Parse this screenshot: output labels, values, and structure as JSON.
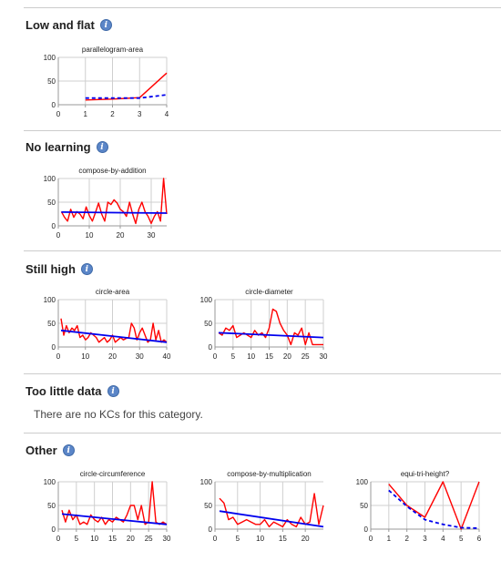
{
  "sections": [
    {
      "title": "Low and flat"
    },
    {
      "title": "No learning"
    },
    {
      "title": "Still high"
    },
    {
      "title": "Too little data",
      "empty_message": "There are no KCs for this category."
    },
    {
      "title": "Other"
    }
  ],
  "colors": {
    "actual": "#ff0000",
    "predicted": "#0000ee",
    "grid": "#cfcfcf",
    "axis": "#999999"
  },
  "chart_data": [
    {
      "type": "line",
      "title": "parallelogram-area",
      "section": "Low and flat",
      "xlim": [
        0,
        4
      ],
      "ylim": [
        0,
        100
      ],
      "xticks": [
        0,
        1,
        2,
        3,
        4
      ],
      "yticks": [
        0,
        50,
        100
      ],
      "series": [
        {
          "role": "actual",
          "x": [
            1,
            2,
            3,
            4
          ],
          "y": [
            10,
            12,
            15,
            67
          ]
        },
        {
          "role": "predicted",
          "style": "dashed",
          "x": [
            1,
            2,
            3,
            4
          ],
          "y": [
            14,
            14,
            14,
            21
          ]
        }
      ]
    },
    {
      "type": "line",
      "title": "compose-by-addition",
      "section": "No learning",
      "xlim": [
        0,
        35
      ],
      "ylim": [
        0,
        100
      ],
      "xticks": [
        0,
        10,
        20,
        30
      ],
      "yticks": [
        0,
        50,
        100
      ],
      "series": [
        {
          "role": "actual",
          "x": [
            1,
            2,
            3,
            4,
            5,
            6,
            7,
            8,
            9,
            10,
            11,
            12,
            13,
            14,
            15,
            16,
            17,
            18,
            19,
            20,
            21,
            22,
            23,
            24,
            25,
            26,
            27,
            28,
            29,
            30,
            31,
            32,
            33,
            34,
            35
          ],
          "y": [
            30,
            18,
            10,
            35,
            18,
            30,
            25,
            15,
            40,
            22,
            10,
            28,
            48,
            25,
            10,
            50,
            45,
            55,
            48,
            35,
            30,
            20,
            50,
            25,
            5,
            35,
            50,
            30,
            20,
            5,
            20,
            30,
            10,
            100,
            25
          ]
        },
        {
          "role": "predicted",
          "x": [
            1,
            35
          ],
          "y": [
            29,
            27
          ]
        }
      ]
    },
    {
      "type": "line",
      "title": "circle-area",
      "section": "Still high",
      "xlim": [
        0,
        40
      ],
      "ylim": [
        0,
        100
      ],
      "xticks": [
        0,
        10,
        20,
        30,
        40
      ],
      "yticks": [
        0,
        50,
        100
      ],
      "series": [
        {
          "role": "actual",
          "x": [
            1,
            2,
            3,
            4,
            5,
            6,
            7,
            8,
            9,
            10,
            11,
            12,
            13,
            14,
            15,
            16,
            17,
            18,
            19,
            20,
            21,
            22,
            23,
            24,
            25,
            26,
            27,
            28,
            29,
            30,
            31,
            32,
            33,
            34,
            35,
            36,
            37,
            38,
            39,
            40
          ],
          "y": [
            60,
            25,
            45,
            30,
            40,
            35,
            45,
            20,
            25,
            15,
            20,
            30,
            25,
            20,
            10,
            15,
            20,
            10,
            15,
            25,
            10,
            15,
            20,
            15,
            18,
            20,
            50,
            40,
            15,
            30,
            40,
            25,
            10,
            15,
            50,
            15,
            35,
            10,
            15,
            10
          ]
        },
        {
          "role": "predicted",
          "x": [
            1,
            40
          ],
          "y": [
            35,
            10
          ]
        }
      ]
    },
    {
      "type": "line",
      "title": "circle-diameter",
      "section": "Still high",
      "xlim": [
        0,
        30
      ],
      "ylim": [
        0,
        100
      ],
      "xticks": [
        0,
        5,
        10,
        15,
        20,
        25,
        30
      ],
      "yticks": [
        0,
        50,
        100
      ],
      "series": [
        {
          "role": "actual",
          "x": [
            1,
            2,
            3,
            4,
            5,
            6,
            7,
            8,
            9,
            10,
            11,
            12,
            13,
            14,
            15,
            16,
            17,
            18,
            19,
            20,
            21,
            22,
            23,
            24,
            25,
            26,
            27,
            28,
            29,
            30
          ],
          "y": [
            30,
            25,
            40,
            35,
            45,
            20,
            25,
            30,
            25,
            20,
            35,
            25,
            30,
            20,
            40,
            80,
            75,
            50,
            35,
            25,
            5,
            30,
            25,
            40,
            5,
            30,
            5,
            5,
            5,
            5
          ]
        },
        {
          "role": "predicted",
          "x": [
            1,
            30
          ],
          "y": [
            30,
            20
          ]
        }
      ]
    },
    {
      "type": "line",
      "title": "circle-circumference",
      "section": "Other",
      "xlim": [
        0,
        30
      ],
      "ylim": [
        0,
        100
      ],
      "xticks": [
        0,
        5,
        10,
        15,
        20,
        25,
        30
      ],
      "yticks": [
        0,
        50,
        100
      ],
      "series": [
        {
          "role": "actual",
          "x": [
            1,
            2,
            3,
            4,
            5,
            6,
            7,
            8,
            9,
            10,
            11,
            12,
            13,
            14,
            15,
            16,
            17,
            18,
            19,
            20,
            21,
            22,
            23,
            24,
            25,
            26,
            27,
            28,
            29,
            30
          ],
          "y": [
            40,
            15,
            40,
            20,
            30,
            10,
            15,
            10,
            30,
            20,
            15,
            25,
            10,
            20,
            15,
            25,
            20,
            15,
            30,
            50,
            50,
            20,
            50,
            10,
            15,
            100,
            15,
            10,
            15,
            10
          ]
        },
        {
          "role": "predicted",
          "x": [
            1,
            30
          ],
          "y": [
            32,
            10
          ]
        }
      ]
    },
    {
      "type": "line",
      "title": "compose-by-multiplication",
      "section": "Other",
      "xlim": [
        0,
        24
      ],
      "ylim": [
        0,
        100
      ],
      "xticks": [
        0,
        5,
        10,
        15,
        20
      ],
      "yticks": [
        0,
        50,
        100
      ],
      "series": [
        {
          "role": "actual",
          "x": [
            1,
            2,
            3,
            4,
            5,
            6,
            7,
            8,
            9,
            10,
            11,
            12,
            13,
            14,
            15,
            16,
            17,
            18,
            19,
            20,
            21,
            22,
            23,
            24
          ],
          "y": [
            65,
            55,
            20,
            25,
            10,
            15,
            20,
            15,
            10,
            10,
            20,
            5,
            15,
            10,
            5,
            20,
            10,
            5,
            25,
            10,
            15,
            75,
            10,
            50
          ]
        },
        {
          "role": "predicted",
          "x": [
            1,
            24
          ],
          "y": [
            38,
            5
          ]
        }
      ]
    },
    {
      "type": "line",
      "title": "equi-tri-height?",
      "section": "Other",
      "xlim": [
        0,
        6
      ],
      "ylim": [
        0,
        100
      ],
      "xticks": [
        0,
        1,
        2,
        3,
        4,
        5,
        6
      ],
      "yticks": [
        0,
        50,
        100
      ],
      "series": [
        {
          "role": "actual",
          "x": [
            1,
            2,
            3,
            4,
            5,
            6
          ],
          "y": [
            95,
            50,
            25,
            100,
            0,
            100
          ]
        },
        {
          "role": "predicted",
          "style": "dashed",
          "x": [
            1,
            2,
            3,
            4,
            5,
            6
          ],
          "y": [
            82,
            48,
            20,
            10,
            3,
            2
          ]
        }
      ]
    }
  ]
}
